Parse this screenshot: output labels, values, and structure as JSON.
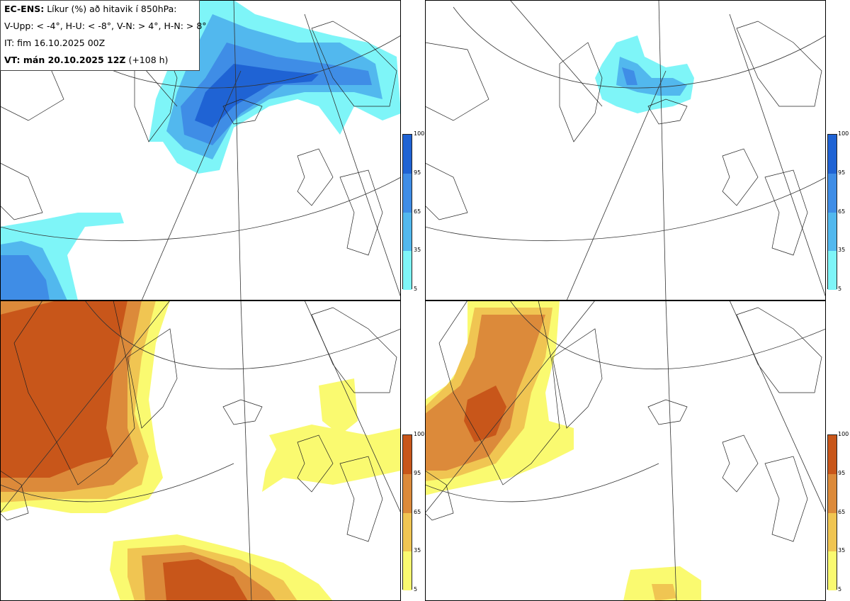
{
  "info": {
    "title_bold": "EC-ENS:",
    "title_rest": "Líkur (%) að hitavik í 850hPa:",
    "legend_line": "V-Upp: < -4°, H-U: < -8°, V-N: > 4°, H-N: > 8°",
    "issue_time": "IT: fim 16.10.2025 00Z",
    "valid_bold": "VT: mán 20.10.2025 12Z",
    "valid_rest": "(+108 h)"
  },
  "panels": [
    {
      "id": "V-Upp",
      "quadrant": "top-left",
      "colormap": "blue"
    },
    {
      "id": "H-U",
      "quadrant": "top-right",
      "colormap": "blue"
    },
    {
      "id": "V-N",
      "quadrant": "bottom-left",
      "colormap": "orange"
    },
    {
      "id": "H-N",
      "quadrant": "bottom-right",
      "colormap": "orange"
    }
  ],
  "colorbar": {
    "ticks": [
      "100",
      "95",
      "65",
      "35",
      "5"
    ],
    "blue_colors": [
      "#1f63d4",
      "#3f8de6",
      "#52b8ee",
      "#7ef5f8"
    ],
    "orange_colors": [
      "#c8561a",
      "#dc8a3a",
      "#f0c552",
      "#fafa70"
    ]
  }
}
